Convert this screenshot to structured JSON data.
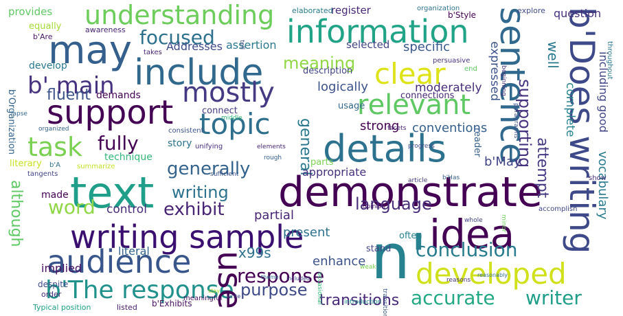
{
  "words": [
    {
      "text": "demonstrate",
      "color": "#440154"
    },
    {
      "text": "writing sample",
      "color": "#3b0f70"
    },
    {
      "text": "include",
      "color": "#31688e"
    },
    {
      "text": "may",
      "color": "#35608d"
    },
    {
      "text": "details",
      "color": "#2c728e"
    },
    {
      "text": "text",
      "color": "#1f9e89"
    },
    {
      "text": "information",
      "color": "#20a386"
    },
    {
      "text": "idea",
      "color": "#440154"
    },
    {
      "text": "n'",
      "color": "#26828e"
    },
    {
      "text": "support",
      "color": "#440154"
    },
    {
      "text": "sentence",
      "color": "#31688e"
    },
    {
      "text": "b'Does writing",
      "color": "#3e4989"
    },
    {
      "text": "understanding",
      "color": "#6ccd5a"
    },
    {
      "text": "clear",
      "color": "#dde318"
    },
    {
      "text": "audience",
      "color": "#39568c"
    },
    {
      "text": "developed",
      "color": "#d0e11c"
    },
    {
      "text": "mostly",
      "color": "#443983"
    },
    {
      "text": "topic",
      "color": "#2e6f8e"
    },
    {
      "text": "relevant",
      "color": "#5ec962"
    },
    {
      "text": "b'The response",
      "color": "#21918c"
    },
    {
      "text": "use",
      "color": "#440154"
    },
    {
      "text": "task",
      "color": "#7ad151"
    },
    {
      "text": "accurate",
      "color": "#22a884"
    },
    {
      "text": "focused",
      "color": "#2d708e"
    },
    {
      "text": "generally",
      "color": "#33638d"
    },
    {
      "text": "conclusion",
      "color": "#287c8e"
    },
    {
      "text": "writer",
      "color": "#1f9e89"
    },
    {
      "text": "language",
      "color": "#472d7b"
    },
    {
      "text": "exhibit",
      "color": "#482475"
    },
    {
      "text": "b' main",
      "color": "#46327e"
    },
    {
      "text": "fully",
      "color": "#440154"
    },
    {
      "text": "word",
      "color": "#8fd744"
    },
    {
      "text": "although",
      "color": "#5ec962"
    },
    {
      "text": "response",
      "color": "#440154"
    },
    {
      "text": "purpose",
      "color": "#3e4989"
    },
    {
      "text": "writing",
      "color": "#2c728e"
    },
    {
      "text": "supporting",
      "color": "#46327e"
    },
    {
      "text": "attempt",
      "color": "#443983"
    },
    {
      "text": "meaning",
      "color": "#8fd744"
    },
    {
      "text": "fluent",
      "color": "#3b528b"
    },
    {
      "text": "transitions",
      "color": "#482878"
    },
    {
      "text": "x99s",
      "color": "#2d708e"
    },
    {
      "text": "general",
      "color": "#2a788e"
    },
    {
      "text": "vocabulary",
      "color": "#287c8e"
    },
    {
      "text": "including good",
      "color": "#414487"
    },
    {
      "text": "b'May",
      "color": "#414487"
    },
    {
      "text": "conventions",
      "color": "#355f8d"
    },
    {
      "text": "logically",
      "color": "#3b528b"
    },
    {
      "text": "moderately",
      "color": "#472d7b"
    },
    {
      "text": "strong",
      "color": "#440154"
    },
    {
      "text": "well",
      "color": "#2a788e"
    },
    {
      "text": "complete",
      "color": "#26828e"
    },
    {
      "text": "expressed",
      "color": "#3b528b"
    },
    {
      "text": "specific",
      "color": "#38588c"
    },
    {
      "text": "enhance",
      "color": "#3b528b"
    },
    {
      "text": "present",
      "color": "#2c728e"
    },
    {
      "text": "control",
      "color": "#472d7b"
    },
    {
      "text": "partial",
      "color": "#482475"
    },
    {
      "text": "literal",
      "color": "#33638d"
    },
    {
      "text": "implied",
      "color": "#471063"
    },
    {
      "text": "appropriate",
      "color": "#46307e"
    },
    {
      "text": "question",
      "color": "#46307e"
    },
    {
      "text": "Addresses",
      "color": "#3e4989"
    },
    {
      "text": "assertion",
      "color": "#2a788e"
    },
    {
      "text": "selected",
      "color": "#414487"
    },
    {
      "text": "register",
      "color": "#482878"
    },
    {
      "text": "provides",
      "color": "#5ec962"
    },
    {
      "text": "equally",
      "color": "#a5db36"
    },
    {
      "text": "develop",
      "color": "#2a788e"
    },
    {
      "text": "demands",
      "color": "#440154"
    },
    {
      "text": "technique",
      "color": "#35b779"
    },
    {
      "text": "literary",
      "color": "#c8e020"
    },
    {
      "text": "story",
      "color": "#2c728e"
    },
    {
      "text": "made",
      "color": "#440154"
    },
    {
      "text": "reader",
      "color": "#35608d"
    },
    {
      "text": "stand",
      "color": "#404688"
    },
    {
      "text": "often",
      "color": "#26828e"
    },
    {
      "text": "usage",
      "color": "#31688e"
    },
    {
      "text": "parts",
      "color": "#7ad151"
    },
    {
      "text": "connect",
      "color": "#443a83"
    },
    {
      "text": "connections",
      "color": "#482878"
    },
    {
      "text": "description",
      "color": "#414487"
    },
    {
      "text": "b'Organization",
      "color": "#33638d"
    },
    {
      "text": "b'Exhibits",
      "color": "#471063"
    },
    {
      "text": "Typical position",
      "color": "#1fa187"
    },
    {
      "text": "listed",
      "color": "#481b6d"
    },
    {
      "text": "despite",
      "color": "#3e4989"
    },
    {
      "text": "order",
      "color": "#482878"
    },
    {
      "text": "b'Are",
      "color": "#481668"
    },
    {
      "text": "awareness",
      "color": "#482475"
    },
    {
      "text": "elaborated",
      "color": "#287c8e"
    },
    {
      "text": "b'Style",
      "color": "#440154"
    },
    {
      "text": "explore",
      "color": "#3e4989"
    },
    {
      "text": "organization",
      "color": "#2c728e"
    },
    {
      "text": "persuasive",
      "color": "#46327e"
    },
    {
      "text": "end",
      "color": "#5ec962"
    },
    {
      "text": "takes",
      "color": "#482475"
    },
    {
      "text": "tell",
      "color": "#3e4989"
    },
    {
      "text": "beginning",
      "color": "#46307e"
    },
    {
      "text": "paragraphs",
      "color": "#3b528b"
    },
    {
      "text": "middle",
      "color": "#35b779"
    },
    {
      "text": "organized",
      "color": "#33638d"
    },
    {
      "text": "consistent",
      "color": "#3b528b"
    },
    {
      "text": "lapse",
      "color": "#31688e"
    },
    {
      "text": "unifying",
      "color": "#472d7b"
    },
    {
      "text": "elements",
      "color": "#482878"
    },
    {
      "text": "facets",
      "color": "#482475"
    },
    {
      "text": "progress",
      "color": "#3e4989"
    },
    {
      "text": "rough",
      "color": "#35608d"
    },
    {
      "text": "summarize",
      "color": "#c2df23"
    },
    {
      "text": "b'A",
      "color": "#2e6f8e"
    },
    {
      "text": "tangents",
      "color": "#414487"
    },
    {
      "text": "sufficient",
      "color": "#3b528b"
    },
    {
      "text": "article",
      "color": "#443a83"
    },
    {
      "text": "b'Has",
      "color": "#355f8d"
    },
    {
      "text": "show",
      "color": "#472d7b"
    },
    {
      "text": "opinion",
      "color": "#481b6d"
    },
    {
      "text": "minor",
      "color": "#6ccd5a"
    },
    {
      "text": "accomplish",
      "color": "#404688"
    },
    {
      "text": "whole",
      "color": "#424086"
    },
    {
      "text": "weak",
      "color": "#7ad151"
    },
    {
      "text": "theme",
      "color": "#2e6f8e"
    },
    {
      "text": "included",
      "color": "#404688"
    },
    {
      "text": "reasons",
      "color": "#46327e"
    },
    {
      "text": "reasonably",
      "color": "#2e6f8e"
    },
    {
      "text": "stay",
      "color": "#aadc32"
    },
    {
      "text": "write",
      "color": "#404688"
    },
    {
      "text": "occasional",
      "color": "#35b779"
    },
    {
      "text": "introduction",
      "color": "#21918c"
    },
    {
      "text": "transitional",
      "color": "#39568c"
    },
    {
      "text": "meaningful",
      "color": "#471063"
    },
    {
      "text": "throughout",
      "color": "#2a788e"
    }
  ]
}
